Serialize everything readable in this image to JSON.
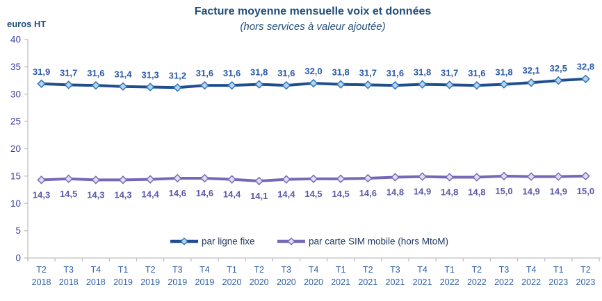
{
  "chart_data": {
    "type": "line",
    "title": "Facture moyenne mensuelle voix et données",
    "subtitle": "(hors services à valeur ajoutée)",
    "ylabel": "euros HT",
    "xlabel": "",
    "ylim": [
      0,
      40
    ],
    "ytick_step": 5,
    "grid": false,
    "legend_position": "bottom-center-inside",
    "decimal_separator": ",",
    "categories": [
      "T2 2018",
      "T3 2018",
      "T4 2018",
      "T1 2019",
      "T2 2019",
      "T3 2019",
      "T4 2019",
      "T1 2020",
      "T2 2020",
      "T3 2020",
      "T4 2020",
      "T1 2021",
      "T2 2021",
      "T3 2021",
      "T4 2021",
      "T1 2022",
      "T2 2022",
      "T3 2022",
      "T4 2022",
      "T1 2023",
      "T2 2023"
    ],
    "series": [
      {
        "name": "par ligne fixe",
        "values": [
          31.9,
          31.7,
          31.6,
          31.4,
          31.3,
          31.2,
          31.6,
          31.6,
          31.8,
          31.6,
          32.0,
          31.8,
          31.7,
          31.6,
          31.8,
          31.7,
          31.6,
          31.8,
          32.1,
          32.5,
          32.8
        ],
        "line_color": "#1F4E8F",
        "marker_fill": "#B8D4F0",
        "marker_stroke": "#2E75B6",
        "label_color": "#2A5AA8",
        "label_position": "above"
      },
      {
        "name": "par carte SIM mobile (hors MtoM)",
        "values": [
          14.3,
          14.5,
          14.3,
          14.3,
          14.4,
          14.6,
          14.6,
          14.4,
          14.1,
          14.4,
          14.5,
          14.5,
          14.6,
          14.8,
          14.9,
          14.8,
          14.8,
          15.0,
          14.9,
          14.9,
          15.0
        ],
        "line_color": "#7668B8",
        "marker_fill": "#E2DEF2",
        "marker_stroke": "#7668B8",
        "label_color": "#5A5AA8",
        "label_position": "below"
      }
    ],
    "colors": {
      "title": "#1F4E79",
      "axis_line": "#BFBFBF",
      "y_tick_label": "#3A3E9F",
      "x_tick_label": "#2E5EA6",
      "legend_text": "#1F3864"
    }
  }
}
